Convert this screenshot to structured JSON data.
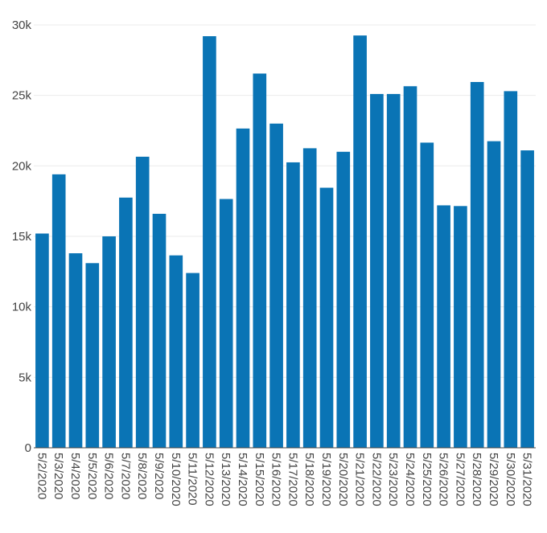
{
  "chart_data": {
    "type": "bar",
    "title": "",
    "xlabel": "",
    "ylabel": "",
    "ylim": [
      0,
      30000
    ],
    "yticks": [
      0,
      5000,
      10000,
      15000,
      20000,
      25000,
      30000
    ],
    "ytick_labels": [
      "0",
      "5k",
      "10k",
      "15k",
      "20k",
      "25k",
      "30k"
    ],
    "grid": true,
    "bar_color": "#0a74b5",
    "categories": [
      "5/2/2020",
      "5/3/2020",
      "5/4/2020",
      "5/5/2020",
      "5/6/2020",
      "5/7/2020",
      "5/8/2020",
      "5/9/2020",
      "5/10/2020",
      "5/11/2020",
      "5/12/2020",
      "5/13/2020",
      "5/14/2020",
      "5/15/2020",
      "5/16/2020",
      "5/17/2020",
      "5/18/2020",
      "5/19/2020",
      "5/20/2020",
      "5/21/2020",
      "5/22/2020",
      "5/23/2020",
      "5/24/2020",
      "5/25/2020",
      "5/26/2020",
      "5/27/2020",
      "5/28/2020",
      "5/29/2020",
      "5/30/2020",
      "5/31/2020"
    ],
    "values": [
      15200,
      19400,
      13800,
      13100,
      15000,
      17750,
      20650,
      16600,
      13650,
      12400,
      29200,
      17650,
      22650,
      26550,
      23000,
      20250,
      21250,
      18450,
      21000,
      29250,
      25100,
      25100,
      25650,
      21650,
      17200,
      17150,
      25950,
      21750,
      25300,
      21100
    ]
  }
}
